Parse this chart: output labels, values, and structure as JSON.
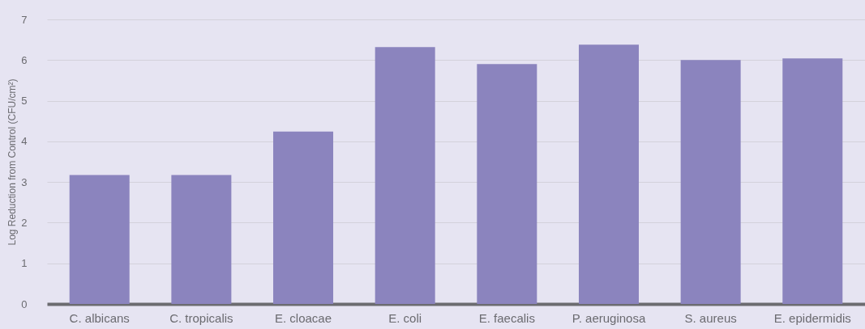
{
  "chart_data": {
    "type": "bar",
    "ylabel": "Log Reduction from Control (CFU/cm²)",
    "categories": [
      "C. albicans",
      "C. tropicalis",
      "E. cloacae",
      "E. coli",
      "E. faecalis",
      "P. aeruginosa",
      "S. aureus",
      "E. epidermidis"
    ],
    "values": [
      3.17,
      3.17,
      4.24,
      6.32,
      5.9,
      6.38,
      6.0,
      6.04
    ],
    "color": "#8b84be",
    "ylim": [
      0,
      7
    ],
    "yticks": [
      0,
      1,
      2,
      3,
      4,
      5,
      6,
      7
    ],
    "grid": "y"
  }
}
